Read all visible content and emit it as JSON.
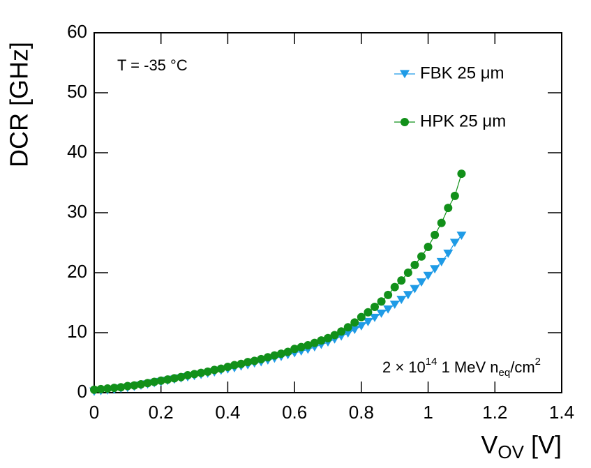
{
  "chart_data": {
    "type": "line",
    "y_label": "DCR [GHz]",
    "x_label": {
      "base": "V",
      "sub": "OV",
      "end": " [V]"
    },
    "annotations": [
      {
        "text": "T = -35 °C"
      },
      {
        "base": "2 × 10",
        "sup": "14",
        "mid": " 1 MeV n",
        "sub": "eq",
        "end": "/cm",
        "sup2": "2"
      }
    ],
    "x": [
      0,
      0.02,
      0.04,
      0.06,
      0.08,
      0.1,
      0.12,
      0.14,
      0.16,
      0.18,
      0.2,
      0.22,
      0.24,
      0.26,
      0.28,
      0.3,
      0.32,
      0.34,
      0.36,
      0.38,
      0.4,
      0.42,
      0.44,
      0.46,
      0.48,
      0.5,
      0.52,
      0.54,
      0.56,
      0.58,
      0.6,
      0.62,
      0.64,
      0.66,
      0.68,
      0.7,
      0.72,
      0.74,
      0.76,
      0.78,
      0.8,
      0.82,
      0.84,
      0.86,
      0.88,
      0.9,
      0.92,
      0.94,
      0.96,
      0.98,
      1,
      1.02,
      1.04,
      1.06,
      1.08,
      1.1
    ],
    "series": [
      {
        "name": "FBK 25 μm",
        "color": "#1f9be6",
        "marker": "triangle-down",
        "values": [
          0.2,
          0.3,
          0.4,
          0.5,
          0.7,
          0.8,
          1.0,
          1.2,
          1.4,
          1.6,
          1.8,
          2.0,
          2.2,
          2.4,
          2.6,
          2.8,
          3.0,
          3.2,
          3.4,
          3.7,
          3.9,
          4.1,
          4.4,
          4.6,
          4.9,
          5.1,
          5.4,
          5.7,
          6.0,
          6.3,
          6.6,
          6.9,
          7.2,
          7.6,
          8.0,
          8.4,
          8.9,
          9.4,
          9.9,
          10.5,
          11.1,
          11.8,
          12.5,
          13.2,
          13.9,
          14.7,
          15.5,
          16.3,
          17.3,
          18.4,
          19.5,
          20.6,
          21.8,
          23.2,
          25.0,
          26.2
        ]
      },
      {
        "name": "HPK 25 μm",
        "color": "#12901a",
        "marker": "circle",
        "values": [
          0.5,
          0.6,
          0.7,
          0.8,
          0.9,
          1.1,
          1.2,
          1.4,
          1.6,
          1.8,
          2.0,
          2.2,
          2.4,
          2.6,
          2.9,
          3.1,
          3.3,
          3.5,
          3.8,
          4.0,
          4.3,
          4.6,
          4.8,
          5.1,
          5.3,
          5.6,
          5.9,
          6.2,
          6.5,
          6.8,
          7.3,
          7.6,
          7.9,
          8.3,
          8.7,
          9.1,
          9.6,
          10.2,
          10.9,
          11.7,
          12.6,
          13.4,
          14.3,
          15.2,
          16.3,
          17.6,
          18.7,
          20.0,
          21.3,
          22.7,
          24.3,
          26.3,
          28.3,
          30.8,
          32.8,
          36.5
        ]
      }
    ],
    "xlim": [
      0,
      1.4
    ],
    "xticks": [
      0,
      0.2,
      0.4,
      0.6,
      0.8,
      1,
      1.2,
      1.4
    ],
    "ylim": [
      0,
      60
    ],
    "yticks": [
      0,
      10,
      20,
      30,
      40,
      50,
      60
    ],
    "legend": "upper right"
  }
}
